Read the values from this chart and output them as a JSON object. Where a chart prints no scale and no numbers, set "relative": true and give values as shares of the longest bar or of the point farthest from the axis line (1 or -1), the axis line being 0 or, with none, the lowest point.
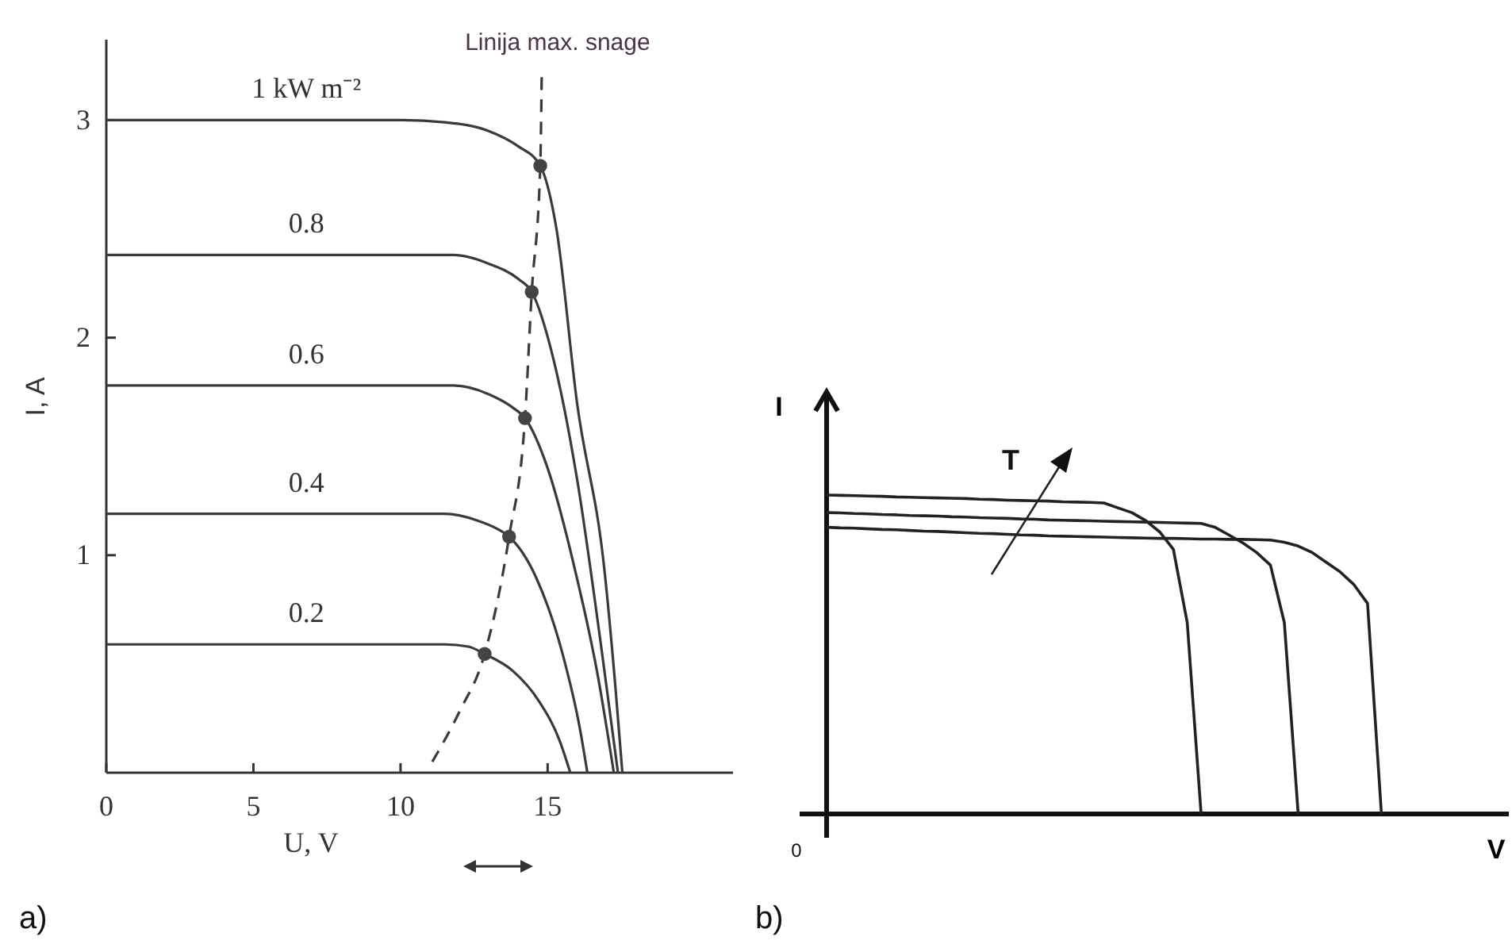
{
  "chart_data": [
    {
      "type": "line",
      "xlabel": "U, V",
      "ylabel": "I, A",
      "xlim": [
        0,
        21.3
      ],
      "ylim": [
        0,
        3.37
      ],
      "xticks": [
        0,
        5,
        10,
        15
      ],
      "yticks": [
        1,
        2,
        3
      ],
      "series": [
        {
          "name": "1 kW m⁻²",
          "color": "#3a3a3a",
          "x": [
            0,
            5,
            10,
            11.5,
            13,
            14,
            14.75,
            15.3,
            16,
            16.94,
            17.3,
            17.54
          ],
          "values": [
            3.0,
            3.0,
            3.0,
            2.99,
            2.95,
            2.88,
            2.79,
            2.5,
            1.7,
            0.92,
            0.4,
            0
          ]
        },
        {
          "name": "0.8",
          "color": "#3a3a3a",
          "x": [
            0,
            5,
            10,
            11.8,
            13,
            14,
            14.46,
            15.2,
            16,
            16.8,
            17.39
          ],
          "values": [
            2.38,
            2.38,
            2.38,
            2.38,
            2.34,
            2.27,
            2.21,
            1.9,
            1.35,
            0.6,
            0
          ]
        },
        {
          "name": "0.6",
          "color": "#3a3a3a",
          "x": [
            0,
            5,
            10,
            11.8,
            13,
            13.8,
            14.23,
            15,
            15.9,
            16.7,
            17.25
          ],
          "values": [
            1.78,
            1.78,
            1.78,
            1.78,
            1.74,
            1.68,
            1.63,
            1.4,
            0.95,
            0.45,
            0
          ]
        },
        {
          "name": "0.4",
          "color": "#3a3a3a",
          "x": [
            0,
            5,
            10,
            11.5,
            12.6,
            13.3,
            13.69,
            14.6,
            15.5,
            16.1,
            16.35
          ],
          "values": [
            1.19,
            1.19,
            1.19,
            1.19,
            1.16,
            1.12,
            1.085,
            0.9,
            0.55,
            0.2,
            0
          ]
        },
        {
          "name": "0.2",
          "color": "#3a3a3a",
          "x": [
            0,
            5,
            10,
            11.5,
            12.3,
            12.86,
            13.8,
            14.7,
            15.4,
            15.77
          ],
          "values": [
            0.59,
            0.59,
            0.59,
            0.59,
            0.58,
            0.546,
            0.47,
            0.33,
            0.15,
            0
          ]
        },
        {
          "name": "Linija max. snage",
          "color": "#3a3a3a",
          "line_style": "dashed",
          "x": [
            11.08,
            12.0,
            12.86,
            13.69,
            14.23,
            14.46,
            14.75,
            14.8
          ],
          "values": [
            0.05,
            0.28,
            0.546,
            1.085,
            1.63,
            2.21,
            2.79,
            3.22
          ]
        },
        {
          "type": "scatter",
          "marker": "circle",
          "color": "#444444",
          "x": [
            14.75,
            14.46,
            14.23,
            13.69,
            12.86
          ],
          "values": [
            2.79,
            2.21,
            1.63,
            1.085,
            0.546
          ]
        }
      ],
      "annotations": [
        "a)"
      ]
    },
    {
      "type": "line",
      "relative": true,
      "xlabel": "V",
      "ylabel": "I",
      "categories": [
        null,
        null,
        null,
        null,
        null,
        null,
        null,
        null,
        null,
        null,
        null,
        null,
        null,
        null,
        null,
        null,
        null,
        null,
        null,
        null,
        null,
        null,
        null,
        null,
        null,
        null,
        null,
        null,
        null,
        null,
        null,
        null,
        null,
        null,
        null,
        null,
        null,
        null,
        null,
        null,
        null
      ],
      "series": [
        {
          "color": "#222222",
          "values": [
            1.0,
            0.999,
            0.998,
            0.997,
            0.996,
            0.994,
            0.993,
            0.992,
            0.991,
            0.99,
            0.989,
            0.987,
            0.986,
            0.984,
            0.983,
            0.982,
            0.981,
            0.979,
            0.978,
            0.977,
            0.975,
            0.96,
            0.945,
            0.92,
            0.885,
            0.83,
            0.6,
            0,
            null,
            null,
            null,
            null,
            null,
            null,
            null,
            null,
            null,
            null,
            null,
            null,
            null
          ]
        },
        {
          "color": "#222222",
          "values": [
            0.945,
            0.944,
            0.942,
            0.941,
            0.939,
            0.938,
            0.936,
            0.935,
            0.934,
            0.932,
            0.931,
            0.929,
            0.928,
            0.927,
            0.925,
            0.924,
            0.922,
            0.921,
            0.92,
            0.919,
            0.918,
            0.917,
            0.916,
            0.915,
            0.914,
            0.913,
            0.912,
            0.911,
            0.899,
            0.875,
            0.85,
            0.82,
            0.78,
            0.6,
            0,
            null,
            null,
            null,
            null,
            null,
            null
          ]
        },
        {
          "color": "#222222",
          "values": [
            0.899,
            0.897,
            0.896,
            0.894,
            0.892,
            0.891,
            0.889,
            0.887,
            0.886,
            0.884,
            0.882,
            0.88,
            0.879,
            0.877,
            0.875,
            0.874,
            0.872,
            0.871,
            0.87,
            0.869,
            0.868,
            0.867,
            0.866,
            0.865,
            0.864,
            0.864,
            0.863,
            0.862,
            0.862,
            0.861,
            0.861,
            0.86,
            0.859,
            0.852,
            0.84,
            0.82,
            0.79,
            0.76,
            0.72,
            0.66,
            0
          ]
        }
      ],
      "annotations": [
        "T",
        "0",
        "b)"
      ]
    }
  ]
}
